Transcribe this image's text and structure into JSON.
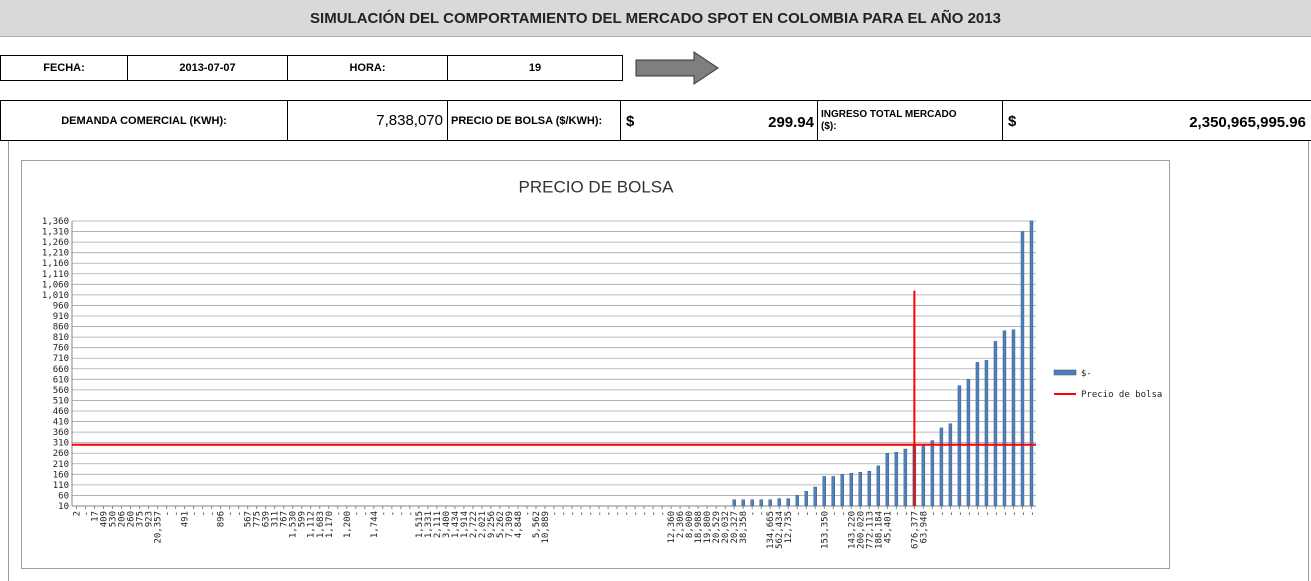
{
  "header": {
    "title": "SIMULACIÓN DEL COMPORTAMIENTO DEL MERCADO SPOT EN COLOMBIA PARA EL AÑO 2013",
    "fecha_label": "FECHA:",
    "fecha": "2013-07-07",
    "hora_label": "HORA:",
    "hora": 19,
    "demanda_label": "DEMANDA COMERCIAL (KWH):",
    "demanda": "7,838,070",
    "precio_label": "PRECIO DE BOLSA ($/KWH):",
    "precio_currency": "$",
    "precio": 299.94,
    "ingreso_label": "INGRESO TOTAL MERCADO ($):",
    "ingreso_currency": "$",
    "ingreso": "2,350,965,995.96"
  },
  "chart_data": {
    "type": "bar",
    "title": "PRECIO DE BOLSA",
    "categories": [
      "2",
      "-",
      "17",
      "409",
      "530",
      "206",
      "260",
      "375",
      "923",
      "20,357",
      "-",
      "-",
      "491",
      "-",
      "-",
      "-",
      "896",
      "-",
      "-",
      "567",
      "775",
      "639",
      "311",
      "767",
      "1,530",
      "599",
      "1,112",
      "1,683",
      "1,170",
      "-",
      "1,200",
      "-",
      "-",
      "1,744",
      "-",
      "-",
      "-",
      "-",
      "1,515",
      "1,331",
      "2,111",
      "3,400",
      "1,434",
      "1,914",
      "2,722",
      "2,021",
      "9,256",
      "5,262",
      "7,309",
      "4,848",
      "-",
      "5,562",
      "10,889",
      "-",
      "-",
      "-",
      "-",
      "-",
      "-",
      "-",
      "-",
      "-",
      "-",
      "-",
      "-",
      "-",
      "12,360",
      "2,306",
      "8,000",
      "18,988",
      "19,800",
      "20,529",
      "20,032",
      "20,327",
      "38,358",
      "-",
      "-",
      "134,665",
      "562,434",
      "12,735",
      "-",
      "-",
      "-",
      "153,350",
      "-",
      "-",
      "143,220",
      "200,020",
      "772,113",
      "188,184",
      "45,401",
      "-",
      "-",
      "676,377",
      "63,948",
      "-",
      "-",
      "-",
      "-",
      "-",
      "-",
      "-",
      "-",
      "-",
      "-",
      "-",
      "-"
    ],
    "series": [
      {
        "name": "$-",
        "color": "#4f81bd",
        "values": [
          0,
          0,
          0,
          0,
          0,
          0,
          0,
          0,
          0,
          0,
          0,
          0,
          0,
          0,
          0,
          0,
          0,
          0,
          0,
          0,
          0,
          0,
          0,
          0,
          0,
          0,
          0,
          0,
          0,
          0,
          0,
          0,
          0,
          0,
          0,
          0,
          0,
          0,
          0,
          0,
          0,
          0,
          0,
          0,
          0,
          0,
          0,
          0,
          0,
          0,
          0,
          0,
          0,
          0,
          0,
          0,
          0,
          0,
          0,
          0,
          0,
          0,
          0,
          0,
          0,
          0,
          0,
          0,
          0,
          0,
          0,
          0,
          0,
          40,
          40,
          40,
          40,
          40,
          45,
          45,
          60,
          80,
          100,
          150,
          150,
          160,
          165,
          170,
          175,
          200,
          260,
          265,
          280,
          295,
          300,
          320,
          380,
          400,
          580,
          610,
          690,
          700,
          790,
          840,
          845,
          1310,
          1360
        ]
      },
      {
        "name": "Precio de bolsa",
        "color": "#ff0000",
        "vline_index": 93,
        "vline_top": 1030
      }
    ],
    "ylim": [
      10,
      1360
    ],
    "yticks": [
      10,
      60,
      110,
      160,
      210,
      260,
      310,
      360,
      410,
      460,
      510,
      560,
      610,
      660,
      710,
      760,
      810,
      860,
      910,
      960,
      {
        "value": 1010,
        "label": "1,010"
      },
      {
        "value": 1060,
        "label": "1,060"
      },
      {
        "value": 1110,
        "label": "1,110"
      },
      {
        "value": 1160,
        "label": "1,160"
      },
      {
        "value": 1210,
        "label": "1,210"
      },
      {
        "value": 1260,
        "label": "1,260"
      },
      {
        "value": 1310,
        "label": "1,310"
      },
      {
        "value": 1360,
        "label": "1,360"
      }
    ],
    "grid": true,
    "legend": "right"
  }
}
